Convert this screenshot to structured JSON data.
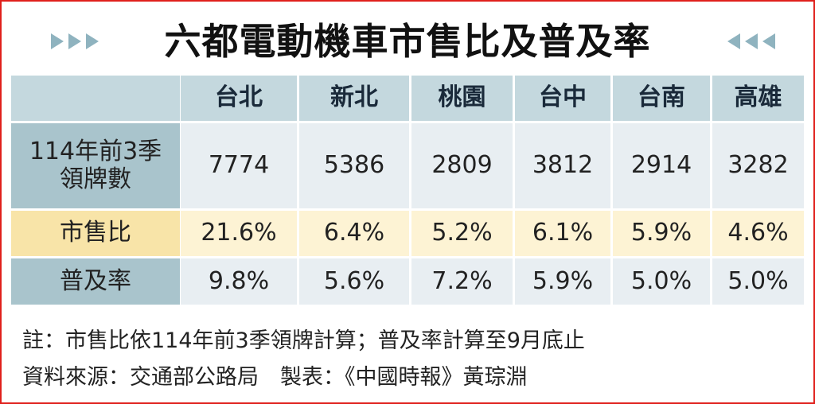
{
  "header": {
    "title": "六都電動機車市售比及普及率"
  },
  "table": {
    "columns": [
      "台北",
      "新北",
      "桃園",
      "台中",
      "台南",
      "高雄"
    ],
    "rows": [
      {
        "label": [
          "114年前3季",
          "領牌數"
        ],
        "cells": [
          "7774",
          "5386",
          "2809",
          "3812",
          "2914",
          "3282"
        ]
      },
      {
        "label": [
          "市售比"
        ],
        "cells": [
          "21.6%",
          "6.4%",
          "5.2%",
          "6.1%",
          "5.9%",
          "4.6%"
        ]
      },
      {
        "label": [
          "普及率"
        ],
        "cells": [
          "9.8%",
          "5.6%",
          "7.2%",
          "5.9%",
          "5.0%",
          "5.0%"
        ]
      }
    ]
  },
  "notes": [
    "註：市售比依114年前3季領牌計算；普及率計算至9月底止",
    "資料來源：交通部公路局　製表：《中國時報》黃琮淵"
  ]
}
